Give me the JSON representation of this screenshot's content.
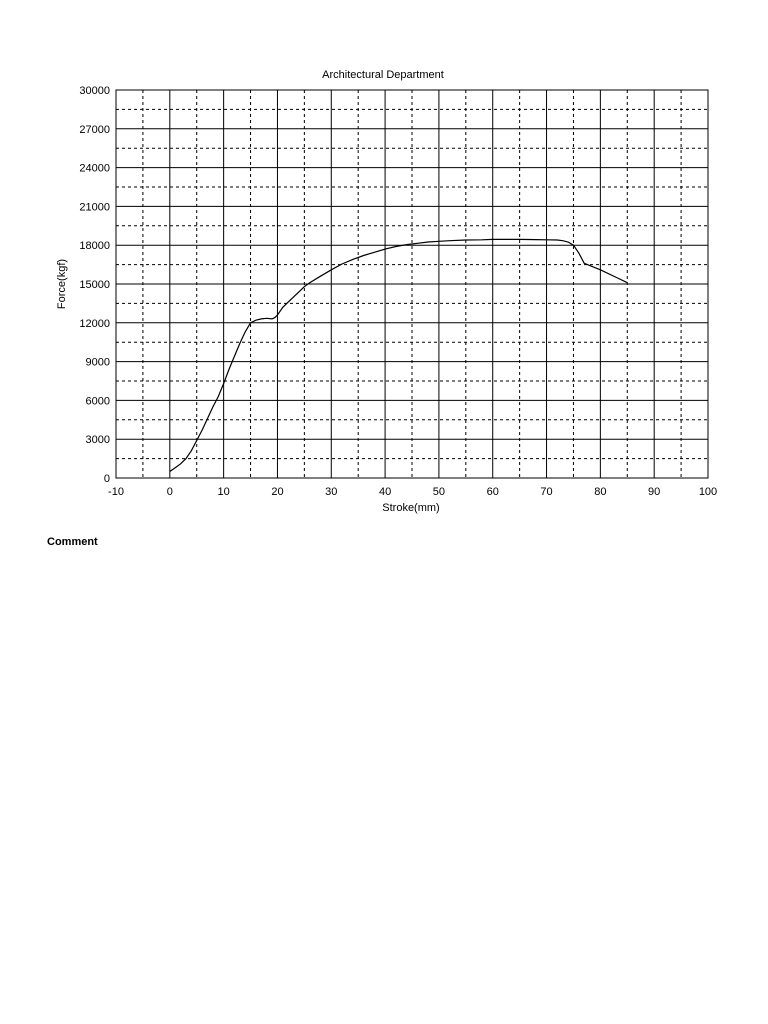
{
  "chart_data": {
    "type": "line",
    "title": "Architectural Department",
    "xlabel": "Stroke(mm)",
    "ylabel": "Force(kgf)",
    "xlim": [
      -10,
      100
    ],
    "ylim": [
      0,
      30000
    ],
    "x_ticks": [
      -10,
      0,
      10,
      20,
      30,
      40,
      50,
      60,
      70,
      80,
      90,
      100
    ],
    "y_ticks": [
      0,
      3000,
      6000,
      9000,
      12000,
      15000,
      18000,
      21000,
      24000,
      27000,
      30000
    ],
    "x_minor_step": 5,
    "y_minor_step": 1500,
    "grid": "major solid, minor dashed",
    "legend": "none",
    "series": [
      {
        "x": [
          0,
          1,
          2,
          3,
          4,
          5,
          6,
          7,
          8,
          9,
          10,
          11,
          12,
          13,
          14,
          15,
          16,
          17,
          18,
          19,
          19.5,
          20,
          20.5,
          21,
          22,
          23,
          24,
          25,
          26,
          28,
          30,
          32,
          34,
          36,
          38,
          40,
          42,
          44,
          46,
          48,
          50,
          52,
          55,
          58,
          60,
          62,
          65,
          68,
          70,
          72,
          73,
          74,
          75,
          76,
          77,
          80,
          83,
          85
        ],
        "y": [
          500,
          800,
          1100,
          1500,
          2100,
          2900,
          3700,
          4600,
          5500,
          6300,
          7300,
          8400,
          9400,
          10400,
          11300,
          12000,
          12200,
          12300,
          12350,
          12300,
          12400,
          12600,
          12900,
          13200,
          13600,
          14000,
          14400,
          14800,
          15100,
          15600,
          16100,
          16550,
          16900,
          17200,
          17450,
          17700,
          17900,
          18050,
          18150,
          18250,
          18300,
          18350,
          18400,
          18420,
          18450,
          18450,
          18450,
          18430,
          18420,
          18400,
          18350,
          18250,
          18000,
          17400,
          16600,
          16100,
          15500,
          15100
        ]
      }
    ]
  },
  "comment": {
    "label": "Comment"
  }
}
